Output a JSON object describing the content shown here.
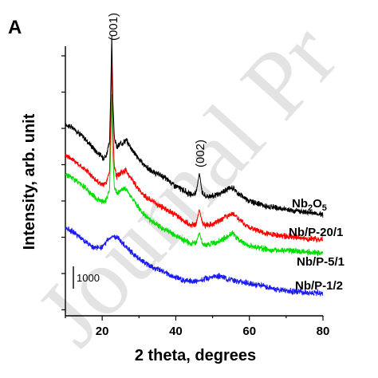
{
  "panel_label": "A",
  "watermark": "Journal Pr",
  "scale_bar_label": "1000",
  "colors": {
    "Nb2O5": "#000000",
    "Nb/P-20/1": "#ff0000",
    "Nb/P-5/1": "#00dd00",
    "Nb/P-1/2": "#1a1aee"
  },
  "chart_data": {
    "type": "line",
    "title": "",
    "xlabel": "2 theta, degrees",
    "ylabel": "Intensity, arb. unit",
    "xlim": [
      10,
      80
    ],
    "x_ticks": [
      20,
      40,
      60,
      80
    ],
    "y_ticks_shown": false,
    "grid": false,
    "annotations": [
      {
        "text": "(001)",
        "x": 22.6
      },
      {
        "text": "(002)",
        "x": 46.4
      }
    ],
    "series": [
      {
        "name": "Nb2O5",
        "label_base": "Nb",
        "label_sub1": "2",
        "label_mid": "O",
        "label_sub2": "5",
        "x": [
          10,
          12,
          14,
          16,
          18,
          20,
          21,
          22,
          22.3,
          22.6,
          22.9,
          23.3,
          24,
          25,
          26.5,
          28,
          30,
          32,
          34,
          36,
          38,
          40,
          42,
          44,
          45.5,
          46.4,
          47.2,
          48,
          50,
          52,
          54,
          55.5,
          57,
          60,
          65,
          70,
          75,
          80
        ],
        "values": [
          7350,
          7200,
          6950,
          6650,
          6300,
          6000,
          6020,
          6600,
          8500,
          11000,
          8300,
          6800,
          6400,
          6550,
          6700,
          6350,
          5900,
          5600,
          5350,
          5250,
          5050,
          4800,
          4650,
          4450,
          4500,
          5350,
          4550,
          4400,
          4400,
          4480,
          4680,
          4750,
          4500,
          4200,
          3950,
          3850,
          3750,
          3650
        ]
      },
      {
        "name": "Nb/P-20/1",
        "x": [
          10,
          12,
          14,
          16,
          18,
          20,
          21,
          22,
          22.3,
          22.6,
          22.9,
          23.3,
          24,
          25,
          26.5,
          28,
          30,
          32,
          34,
          36,
          38,
          40,
          42,
          44,
          45.5,
          46.4,
          47.2,
          48,
          50,
          52,
          54,
          55.5,
          57,
          60,
          65,
          70,
          75,
          80
        ],
        "values": [
          6100,
          5900,
          5650,
          5400,
          5100,
          4850,
          4900,
          5400,
          7400,
          10100,
          7200,
          5550,
          5200,
          5350,
          5450,
          5100,
          4650,
          4350,
          4150,
          3950,
          3800,
          3600,
          3400,
          3200,
          3250,
          3850,
          3300,
          3200,
          3250,
          3400,
          3600,
          3700,
          3450,
          3100,
          2850,
          2750,
          2650,
          2600
        ]
      },
      {
        "name": "Nb/P-5/1",
        "x": [
          10,
          12,
          14,
          16,
          18,
          20,
          21,
          22,
          22.3,
          22.6,
          22.9,
          23.3,
          24,
          25,
          26.5,
          28,
          30,
          32,
          34,
          36,
          38,
          40,
          42,
          44,
          45.5,
          46.4,
          47.2,
          48,
          50,
          52,
          54,
          55.5,
          57,
          60,
          65,
          70,
          75,
          80
        ],
        "values": [
          5300,
          5150,
          4900,
          4650,
          4350,
          4150,
          4200,
          4650,
          6300,
          8600,
          6100,
          4750,
          4500,
          4650,
          4700,
          4350,
          3900,
          3550,
          3300,
          3100,
          2950,
          2750,
          2600,
          2450,
          2450,
          2900,
          2450,
          2400,
          2450,
          2550,
          2750,
          2850,
          2600,
          2350,
          2200,
          2150,
          2100,
          2050
        ]
      },
      {
        "name": "Nb/P-1/2",
        "x": [
          10,
          12,
          14,
          16,
          18,
          20,
          22,
          23,
          24,
          25,
          27,
          29,
          31,
          34,
          37,
          40,
          43,
          46,
          48,
          50,
          52,
          54,
          57,
          60,
          65,
          70,
          75,
          80
        ],
        "values": [
          3100,
          2950,
          2700,
          2450,
          2250,
          2300,
          2650,
          2750,
          2700,
          2550,
          2250,
          1950,
          1700,
          1450,
          1250,
          1050,
          900,
          900,
          1000,
          1100,
          1100,
          1000,
          900,
          800,
          650,
          500,
          450,
          400
        ]
      }
    ]
  }
}
